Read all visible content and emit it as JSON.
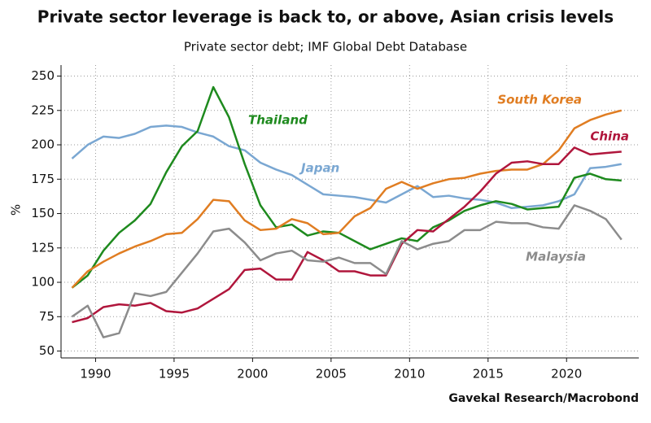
{
  "chart_data": {
    "type": "line",
    "title": "Private sector leverage is back to, or above, Asian crisis levels",
    "subtitle": "Private sector debt; IMF Global Debt Database",
    "y_label": "%",
    "source": "Gavekal Research/Macrobond",
    "x": [
      1988.5,
      1989.5,
      1990.5,
      1991.5,
      1992.5,
      1993.5,
      1994.5,
      1995.5,
      1996.5,
      1997.5,
      1998.5,
      1999.5,
      2000.5,
      2001.5,
      2002.5,
      2003.5,
      2004.5,
      2005.5,
      2006.5,
      2007.5,
      2008.5,
      2009.5,
      2010.5,
      2011.5,
      2012.5,
      2013.5,
      2014.5,
      2015.5,
      2016.5,
      2017.5,
      2018.5,
      2019.5,
      2020.5,
      2021.5,
      2022.5,
      2023.5
    ],
    "xlim": [
      1987.8,
      2024.6
    ],
    "xticks": [
      1990,
      1995,
      2000,
      2005,
      2010,
      2015,
      2020
    ],
    "ylim": [
      45,
      258
    ],
    "yticks": [
      50,
      75,
      100,
      125,
      150,
      175,
      200,
      225,
      250
    ],
    "grid": true,
    "series": [
      {
        "name": "Japan",
        "color": "#7aa7d2",
        "values": [
          190,
          200,
          206,
          205,
          208,
          213,
          214,
          213,
          209,
          206,
          199,
          196,
          187,
          182,
          178,
          171,
          164,
          163,
          162,
          160,
          158,
          164,
          170,
          162,
          163,
          161,
          160,
          158,
          154,
          155,
          156,
          159,
          164,
          183,
          184,
          186
        ]
      },
      {
        "name": "Thailand",
        "color": "#1e8a1e",
        "values": [
          96,
          105,
          123,
          136,
          145,
          157,
          180,
          199,
          210,
          242,
          220,
          186,
          156,
          140,
          142,
          134,
          137,
          136,
          130,
          124,
          128,
          132,
          130,
          140,
          145,
          152,
          156,
          159,
          157,
          153,
          154,
          155,
          176,
          179,
          175,
          174
        ]
      },
      {
        "name": "South Korea",
        "color": "#e07d22",
        "values": [
          96,
          108,
          115,
          121,
          126,
          130,
          135,
          136,
          146,
          160,
          159,
          145,
          138,
          139,
          146,
          143,
          135,
          136,
          148,
          154,
          168,
          173,
          168,
          172,
          175,
          176,
          179,
          181,
          182,
          182,
          186,
          196,
          212,
          218,
          222,
          225
        ]
      },
      {
        "name": "China",
        "color": "#b0163c",
        "values": [
          71,
          74,
          82,
          84,
          83,
          85,
          79,
          78,
          81,
          88,
          95,
          109,
          110,
          102,
          102,
          122,
          116,
          108,
          108,
          105,
          105,
          128,
          138,
          137,
          146,
          155,
          166,
          179,
          187,
          188,
          186,
          186,
          198,
          193,
          194,
          195
        ]
      },
      {
        "name": "Malaysia",
        "color": "#8c8c8c",
        "values": [
          75,
          83,
          60,
          63,
          92,
          90,
          93,
          107,
          121,
          137,
          139,
          129,
          116,
          121,
          123,
          116,
          115,
          118,
          114,
          114,
          106,
          130,
          124,
          128,
          130,
          138,
          138,
          144,
          143,
          143,
          140,
          139,
          156,
          152,
          146,
          131
        ]
      }
    ]
  }
}
